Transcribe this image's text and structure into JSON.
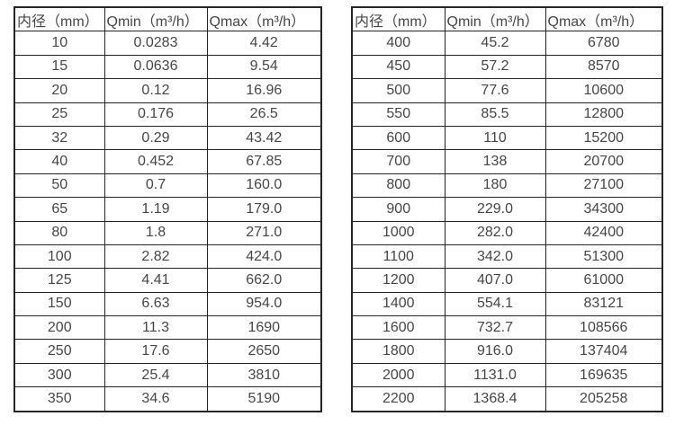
{
  "page": {
    "background_color": "#ffffff",
    "border_color": "#262626",
    "text_color": "#464646"
  },
  "tables": [
    {
      "name": "flow-rate-table-small-diameters",
      "headers": [
        "内径（mm）",
        "Qmin（m³/h）",
        "Qmax（m³/h）"
      ],
      "rows": [
        [
          "10",
          "0.0283",
          "4.42"
        ],
        [
          "15",
          "0.0636",
          "9.54"
        ],
        [
          "20",
          "0.12",
          "16.96"
        ],
        [
          "25",
          "0.176",
          "26.5"
        ],
        [
          "32",
          "0.29",
          "43.42"
        ],
        [
          "40",
          "0.452",
          "67.85"
        ],
        [
          "50",
          "0.7",
          "160.0"
        ],
        [
          "65",
          "1.19",
          "179.0"
        ],
        [
          "80",
          "1.8",
          "271.0"
        ],
        [
          "100",
          "2.82",
          "424.0"
        ],
        [
          "125",
          "4.41",
          "662.0"
        ],
        [
          "150",
          "6.63",
          "954.0"
        ],
        [
          "200",
          "11.3",
          "1690"
        ],
        [
          "250",
          "17.6",
          "2650"
        ],
        [
          "300",
          "25.4",
          "3810"
        ],
        [
          "350",
          "34.6",
          "5190"
        ]
      ]
    },
    {
      "name": "flow-rate-table-large-diameters",
      "headers": [
        "内径（mm）",
        "Qmin（m³/h）",
        "Qmax（m³/h）"
      ],
      "rows": [
        [
          "400",
          "45.2",
          "6780"
        ],
        [
          "450",
          "57.2",
          "8570"
        ],
        [
          "500",
          "77.6",
          "10600"
        ],
        [
          "550",
          "85.5",
          "12800"
        ],
        [
          "600",
          "110",
          "15200"
        ],
        [
          "700",
          "138",
          "20700"
        ],
        [
          "800",
          "180",
          "27100"
        ],
        [
          "900",
          "229.0",
          "34300"
        ],
        [
          "1000",
          "282.0",
          "42400"
        ],
        [
          "1100",
          "342.0",
          "51300"
        ],
        [
          "1200",
          "407.0",
          "61000"
        ],
        [
          "1400",
          "554.1",
          "83121"
        ],
        [
          "1600",
          "732.7",
          "108566"
        ],
        [
          "1800",
          "916.0",
          "137404"
        ],
        [
          "2000",
          "1131.0",
          "169635"
        ],
        [
          "2200",
          "1368.4",
          "205258"
        ]
      ]
    }
  ]
}
